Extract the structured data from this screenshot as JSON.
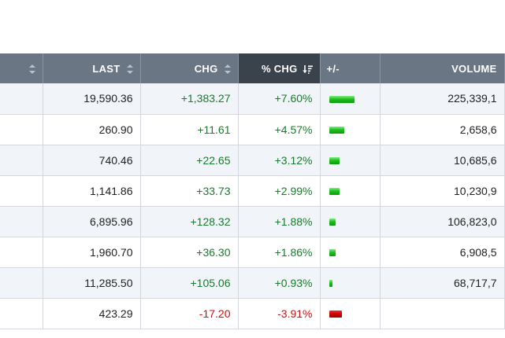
{
  "headers": {
    "last": "LAST",
    "chg": "CHG",
    "pct_chg": "% CHG",
    "bar": "+/-",
    "volume": "VOLUME"
  },
  "colors": {
    "header_bg": "#6b7685",
    "header_active_bg": "#3a424c",
    "positive": "#1a7a2e",
    "negative": "#cc1111",
    "bar_up": "#1fbf1f",
    "bar_down": "#cc0000"
  },
  "bar_max_pct": 7.6,
  "rows": [
    {
      "last": "19,590.36",
      "chg": "+1,383.27",
      "pct_chg": "+7.60%",
      "pct": 7.6,
      "volume": "225,339,1",
      "dir": "up"
    },
    {
      "last": "260.90",
      "chg": "+11.61",
      "pct_chg": "+4.57%",
      "pct": 4.57,
      "volume": "2,658,6",
      "dir": "up"
    },
    {
      "last": "740.46",
      "chg": "+22.65",
      "pct_chg": "+3.12%",
      "pct": 3.12,
      "volume": "10,685,6",
      "dir": "up"
    },
    {
      "last": "1,141.86",
      "chg": "+33.73",
      "pct_chg": "+2.99%",
      "pct": 2.99,
      "volume": "10,230,9",
      "dir": "up"
    },
    {
      "last": "6,895.96",
      "chg": "+128.32",
      "pct_chg": "+1.88%",
      "pct": 1.88,
      "volume": "106,823,0",
      "dir": "up"
    },
    {
      "last": "1,960.70",
      "chg": "+36.30",
      "pct_chg": "+1.86%",
      "pct": 1.86,
      "volume": "6,908,5",
      "dir": "up"
    },
    {
      "last": "11,285.50",
      "chg": "+105.06",
      "pct_chg": "+0.93%",
      "pct": 0.93,
      "volume": "68,717,7",
      "dir": "up"
    },
    {
      "last": "423.29",
      "chg": "-17.20",
      "pct_chg": "-3.91%",
      "pct": -3.91,
      "volume": "",
      "dir": "down"
    }
  ]
}
